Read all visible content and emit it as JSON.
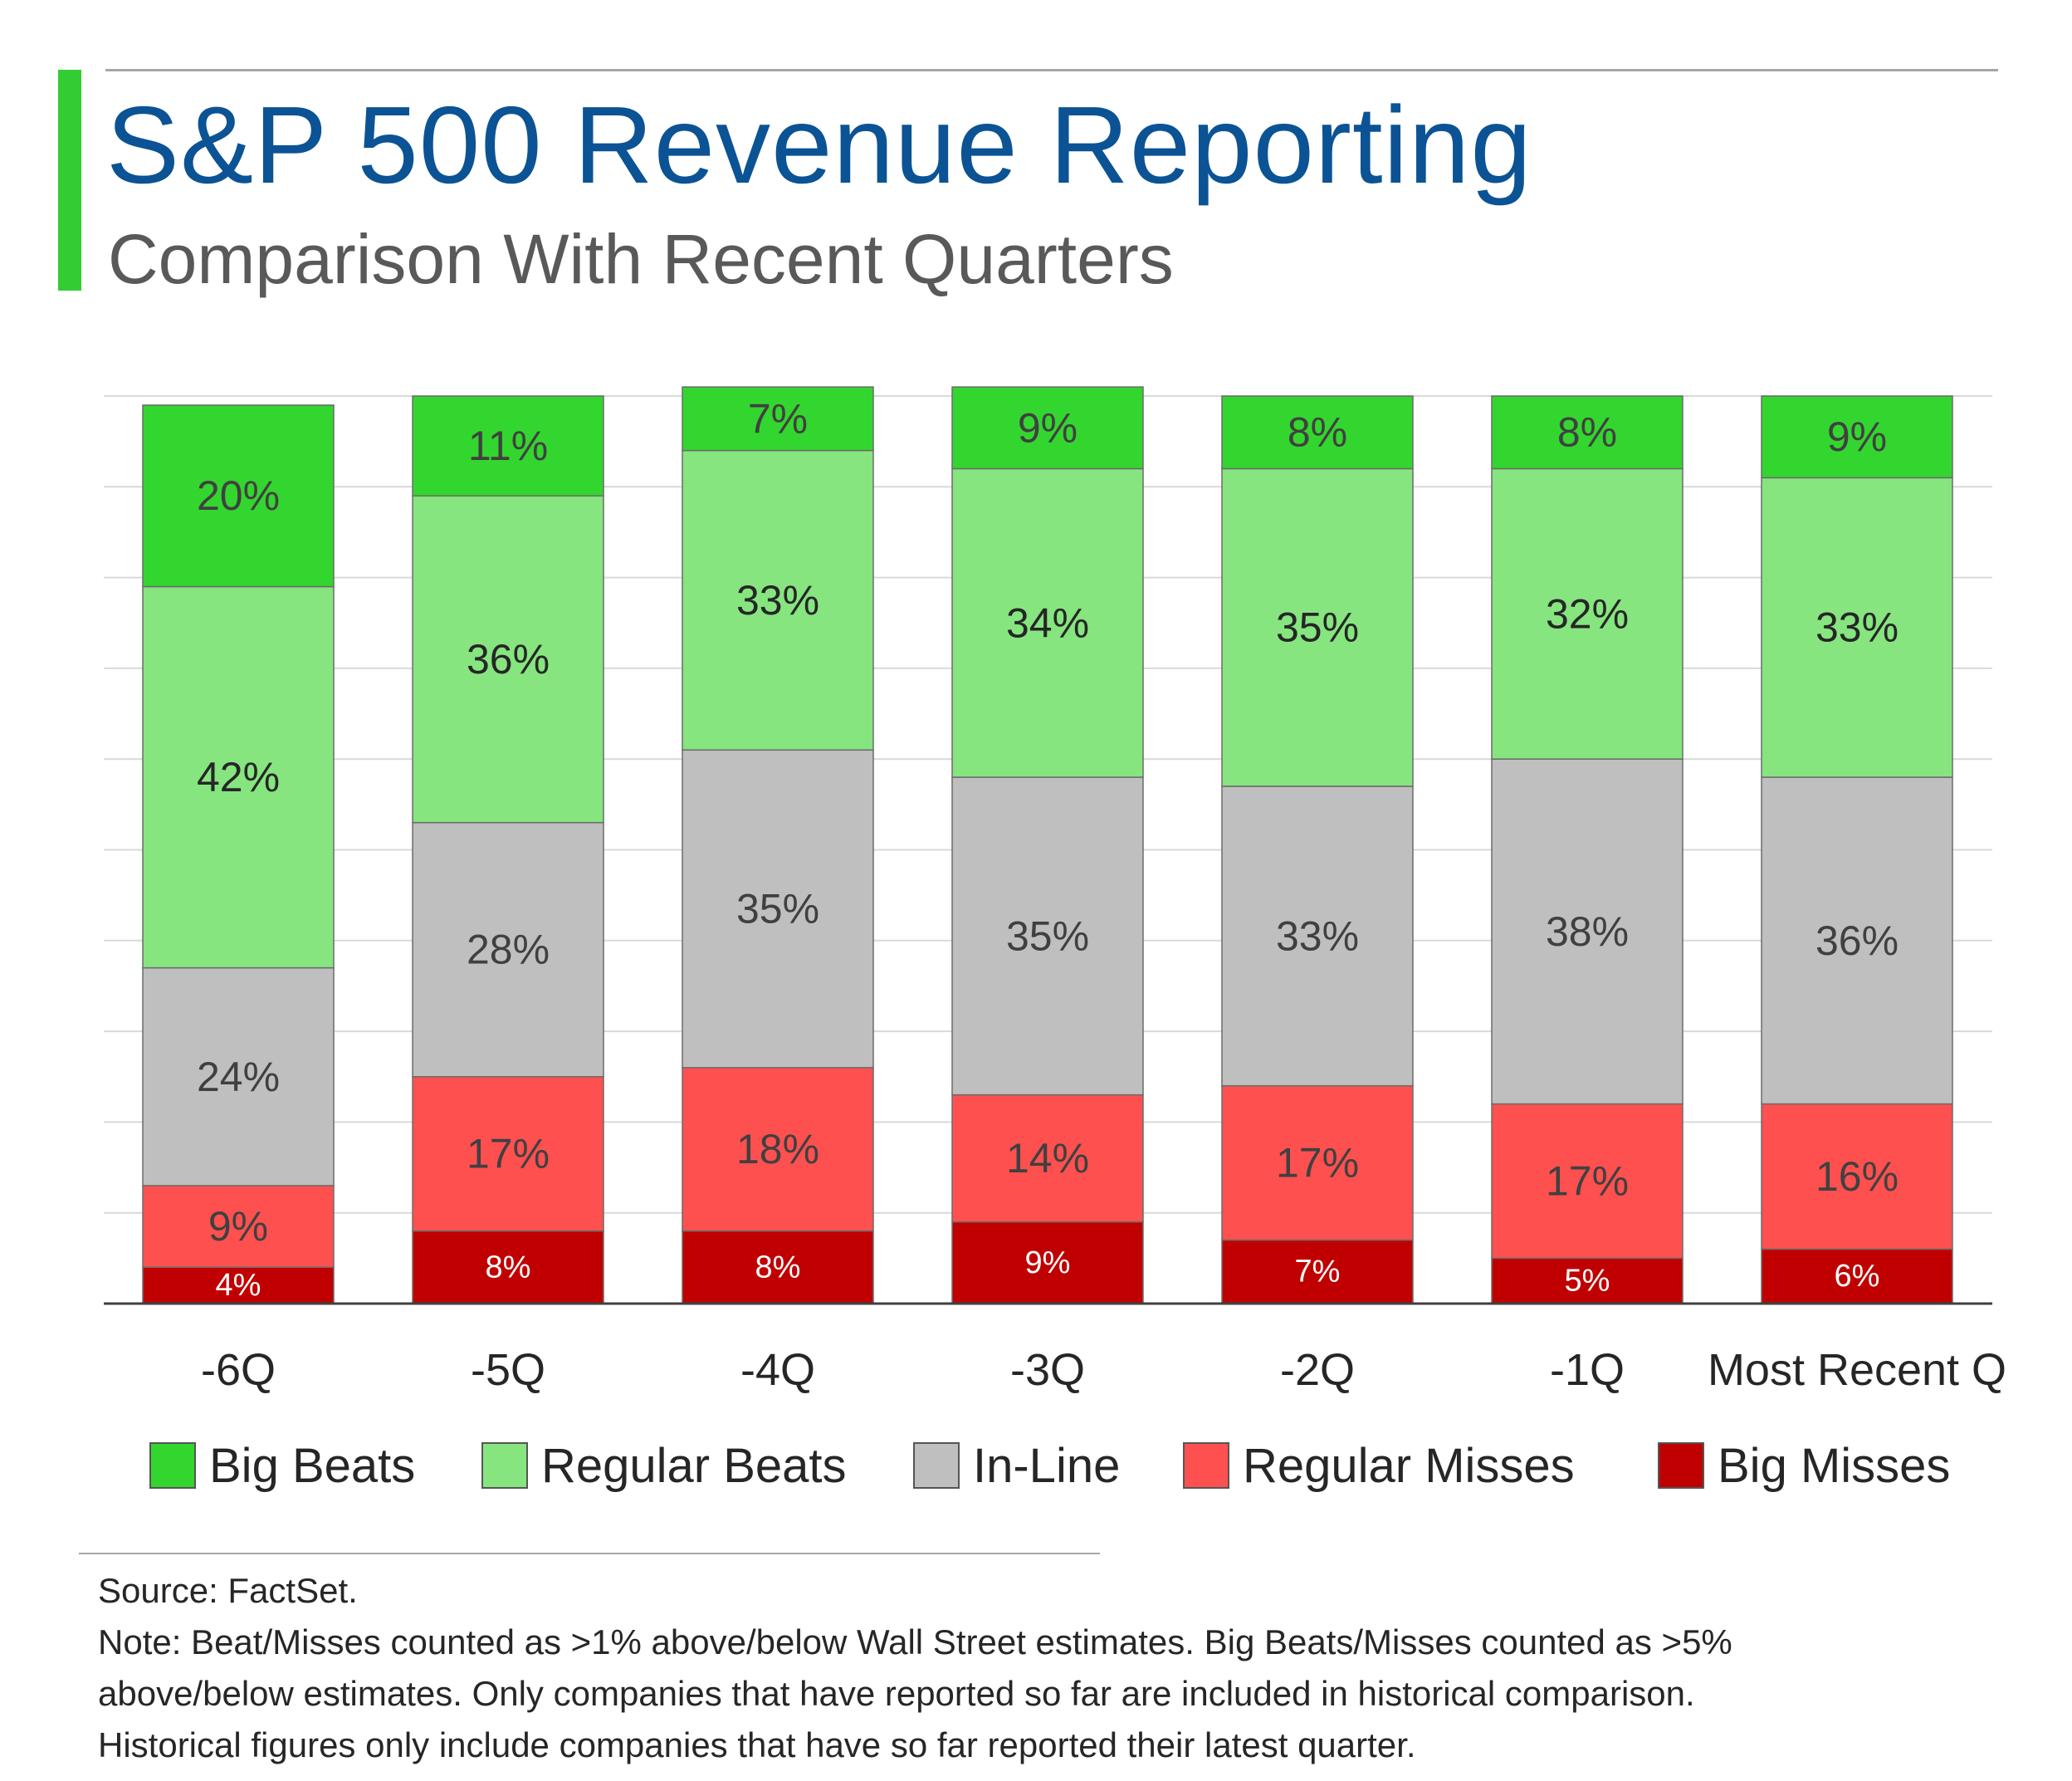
{
  "header": {
    "title": "S&P 500 Revenue Reporting",
    "subtitle": "Comparison With Recent Quarters",
    "accent_color": "#33cc33"
  },
  "chart_data": {
    "type": "bar",
    "stacked": true,
    "categories": [
      "-6Q",
      "-5Q",
      "-4Q",
      "-3Q",
      "-2Q",
      "-1Q",
      "Most Recent Q"
    ],
    "series": [
      {
        "name": "Big Misses",
        "color": "#c00000",
        "label_color": "#ffffff",
        "values": [
          4,
          8,
          8,
          9,
          7,
          5,
          6
        ]
      },
      {
        "name": "Regular Misses",
        "color": "#ff5050",
        "label_color": "#404040",
        "values": [
          9,
          17,
          18,
          14,
          17,
          17,
          16
        ]
      },
      {
        "name": "In-Line",
        "color": "#bfbfbf",
        "label_color": "#404040",
        "values": [
          24,
          28,
          35,
          35,
          33,
          38,
          36
        ]
      },
      {
        "name": "Regular Beats",
        "color": "#86e57f",
        "label_color": "#262626",
        "values": [
          42,
          36,
          33,
          34,
          35,
          32,
          33
        ]
      },
      {
        "name": "Big Beats",
        "color": "#33d62e",
        "label_color": "#404040",
        "values": [
          20,
          11,
          7,
          9,
          8,
          8,
          9
        ]
      }
    ],
    "ylim": [
      0,
      100
    ],
    "grid": true,
    "legend_position": "bottom",
    "legend_order": [
      "Big Beats",
      "Regular Beats",
      "In-Line",
      "Regular Misses",
      "Big Misses"
    ],
    "label_suffix": "%"
  },
  "footer": {
    "source": "Source: FactSet.",
    "note_lines": [
      "Note: Beat/Misses counted as >1% above/below Wall Street estimates. Big Beats/Misses counted as >5%",
      "above/below estimates. Only companies that have reported so far are included in historical comparison.",
      "Historical figures only include companies that have so far reported their latest quarter."
    ]
  }
}
